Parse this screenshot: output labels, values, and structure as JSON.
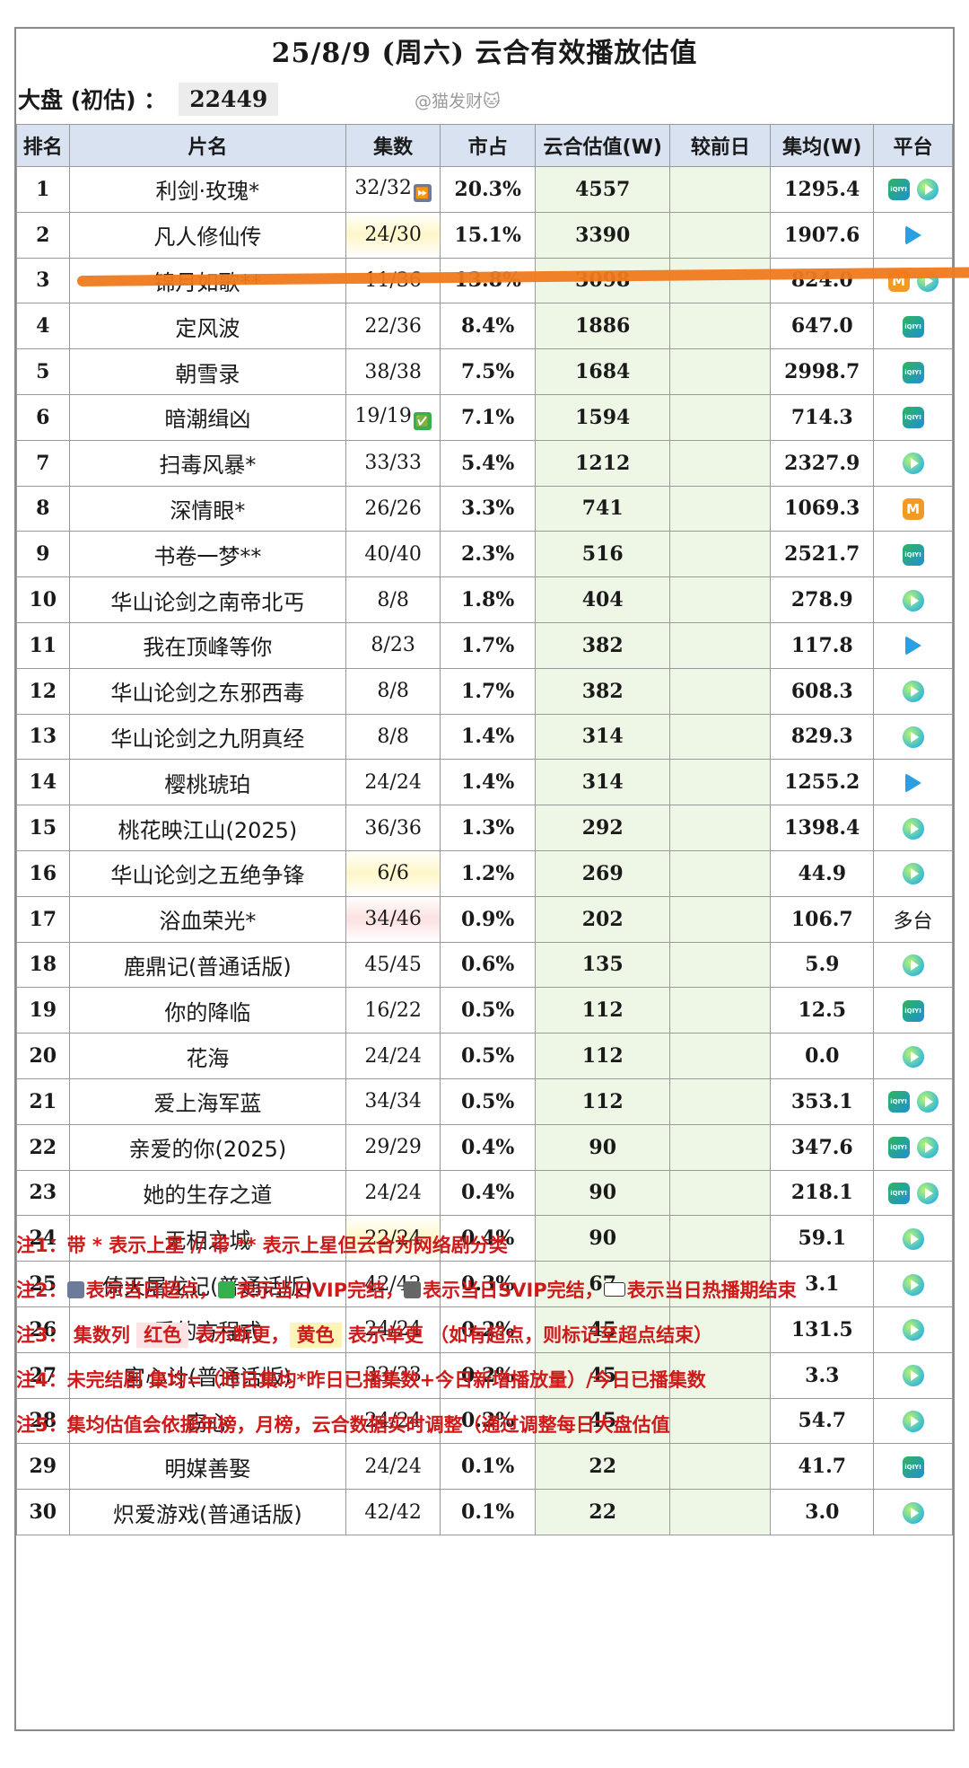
{
  "title": "25/8/9 (周六) 云合有效播放估值",
  "summary": {
    "label": "大盘 (初估) ：",
    "value": "22449"
  },
  "watermark": "@猫发财🐱",
  "columns": [
    "排名",
    "片名",
    "集数",
    "市占",
    "云合估值(W)",
    "较前日",
    "集均(W)",
    "平台"
  ],
  "rows": [
    {
      "rank": "1",
      "name": "利剑·玫瑰*",
      "ep": "32/32",
      "badge": "⏩",
      "share": "20.3%",
      "val": "4557",
      "prev": "",
      "avg": "1295.4",
      "plat": [
        "iqiyi",
        "youku"
      ]
    },
    {
      "rank": "2",
      "name": "凡人修仙传",
      "ep": "24/30",
      "hl": "yellow",
      "share": "15.1%",
      "val": "3390",
      "prev": "",
      "avg": "1907.6",
      "plat": [
        "tencent"
      ]
    },
    {
      "rank": "3",
      "name": "锦月如歌**",
      "ep": "11/36",
      "share": "13.8%",
      "val": "3098",
      "prev": "",
      "avg": "824.0",
      "plat": [
        "mango",
        "youku"
      ]
    },
    {
      "rank": "4",
      "name": "定风波",
      "ep": "22/36",
      "share": "8.4%",
      "val": "1886",
      "prev": "",
      "avg": "647.0",
      "plat": [
        "iqiyi"
      ]
    },
    {
      "rank": "5",
      "name": "朝雪录",
      "ep": "38/38",
      "share": "7.5%",
      "val": "1684",
      "prev": "",
      "avg": "2998.7",
      "plat": [
        "iqiyi"
      ]
    },
    {
      "rank": "6",
      "name": "暗潮缉凶",
      "ep": "19/19",
      "badge": "✅",
      "share": "7.1%",
      "val": "1594",
      "prev": "",
      "avg": "714.3",
      "plat": [
        "iqiyi"
      ]
    },
    {
      "rank": "7",
      "name": "扫毒风暴*",
      "ep": "33/33",
      "share": "5.4%",
      "val": "1212",
      "prev": "",
      "avg": "2327.9",
      "plat": [
        "youku"
      ]
    },
    {
      "rank": "8",
      "name": "深情眼*",
      "ep": "26/26",
      "share": "3.3%",
      "val": "741",
      "prev": "",
      "avg": "1069.3",
      "plat": [
        "mango"
      ]
    },
    {
      "rank": "9",
      "name": "书卷一梦**",
      "ep": "40/40",
      "share": "2.3%",
      "val": "516",
      "prev": "",
      "avg": "2521.7",
      "plat": [
        "iqiyi"
      ]
    },
    {
      "rank": "10",
      "name": "华山论剑之南帝北丐",
      "ep": "8/8",
      "share": "1.8%",
      "val": "404",
      "prev": "",
      "avg": "278.9",
      "plat": [
        "youku"
      ]
    },
    {
      "rank": "11",
      "name": "我在顶峰等你",
      "ep": "8/23",
      "share": "1.7%",
      "val": "382",
      "prev": "",
      "avg": "117.8",
      "plat": [
        "tencent"
      ]
    },
    {
      "rank": "12",
      "name": "华山论剑之东邪西毒",
      "ep": "8/8",
      "share": "1.7%",
      "val": "382",
      "prev": "",
      "avg": "608.3",
      "plat": [
        "youku"
      ]
    },
    {
      "rank": "13",
      "name": "华山论剑之九阴真经",
      "ep": "8/8",
      "share": "1.4%",
      "val": "314",
      "prev": "",
      "avg": "829.3",
      "plat": [
        "youku"
      ]
    },
    {
      "rank": "14",
      "name": "樱桃琥珀",
      "ep": "24/24",
      "share": "1.4%",
      "val": "314",
      "prev": "",
      "avg": "1255.2",
      "plat": [
        "tencent"
      ]
    },
    {
      "rank": "15",
      "name": "桃花映江山(2025)",
      "ep": "36/36",
      "share": "1.3%",
      "val": "292",
      "prev": "",
      "avg": "1398.4",
      "plat": [
        "youku"
      ]
    },
    {
      "rank": "16",
      "name": "华山论剑之五绝争锋",
      "ep": "6/6",
      "hl": "yellow",
      "share": "1.2%",
      "val": "269",
      "prev": "",
      "avg": "44.9",
      "plat": [
        "youku"
      ]
    },
    {
      "rank": "17",
      "name": "浴血荣光*",
      "ep": "34/46",
      "hl": "red",
      "share": "0.9%",
      "val": "202",
      "prev": "",
      "avg": "106.7",
      "plat_text": "多台"
    },
    {
      "rank": "18",
      "name": "鹿鼎记(普通话版)",
      "ep": "45/45",
      "share": "0.6%",
      "val": "135",
      "prev": "",
      "avg": "5.9",
      "plat": [
        "youku"
      ]
    },
    {
      "rank": "19",
      "name": "你的降临",
      "ep": "16/22",
      "share": "0.5%",
      "val": "112",
      "prev": "",
      "avg": "12.5",
      "plat": [
        "iqiyi"
      ]
    },
    {
      "rank": "20",
      "name": "花海",
      "ep": "24/24",
      "share": "0.5%",
      "val": "112",
      "prev": "",
      "avg": "0.0",
      "plat": [
        "youku"
      ]
    },
    {
      "rank": "21",
      "name": "爱上海军蓝",
      "ep": "34/34",
      "share": "0.5%",
      "val": "112",
      "prev": "",
      "avg": "353.1",
      "plat": [
        "iqiyi",
        "youku"
      ]
    },
    {
      "rank": "22",
      "name": "亲爱的你(2025)",
      "ep": "29/29",
      "share": "0.4%",
      "val": "90",
      "prev": "",
      "avg": "347.6",
      "plat": [
        "iqiyi",
        "youku"
      ]
    },
    {
      "rank": "23",
      "name": "她的生存之道",
      "ep": "24/24",
      "share": "0.4%",
      "val": "90",
      "prev": "",
      "avg": "218.1",
      "plat": [
        "iqiyi",
        "youku"
      ]
    },
    {
      "rank": "24",
      "name": "无相之城",
      "ep": "22/24",
      "hl": "yellow",
      "share": "0.4%",
      "val": "90",
      "prev": "",
      "avg": "59.1",
      "plat": [
        "youku"
      ]
    },
    {
      "rank": "25",
      "name": "倚天屠龙记(普通话版)",
      "ep": "42/42",
      "share": "0.3%",
      "val": "67",
      "prev": "",
      "avg": "3.1",
      "plat": [
        "youku"
      ]
    },
    {
      "rank": "26",
      "name": "爱的方程式",
      "ep": "24/24",
      "share": "0.2%",
      "val": "45",
      "prev": "",
      "avg": "131.5",
      "plat": [
        "youku"
      ]
    },
    {
      "rank": "27",
      "name": "宫心计(普通话版)",
      "ep": "33/33",
      "share": "0.2%",
      "val": "45",
      "prev": "",
      "avg": "3.3",
      "plat": [
        "youku"
      ]
    },
    {
      "rank": "28",
      "name": "窃心",
      "ep": "24/24",
      "share": "0.2%",
      "val": "45",
      "prev": "",
      "avg": "54.7",
      "plat": [
        "youku"
      ]
    },
    {
      "rank": "29",
      "name": "明媒善娶",
      "ep": "24/24",
      "share": "0.1%",
      "val": "22",
      "prev": "",
      "avg": "41.7",
      "plat": [
        "iqiyi"
      ]
    },
    {
      "rank": "30",
      "name": "炽爱游戏(普通话版)",
      "ep": "42/42",
      "share": "0.1%",
      "val": "22",
      "prev": "",
      "avg": "3.0",
      "plat": [
        "youku"
      ]
    }
  ],
  "platform_icons": {
    "iqiyi": "iQIYI",
    "tencent": "tencent-video-icon",
    "youku": "youku-icon",
    "mango": "M"
  },
  "notes": {
    "n1": "注1：带 * 表示上星 // 带 ** 表示上星但云合为网络剧分类",
    "n2_a": "注2：",
    "n2_b": "表示当日超点，",
    "n2_c": "表示当日VIP完结，",
    "n2_d": "表示当日SVIP完结，",
    "n2_e": "表示当日热播期结束",
    "n3_a": "注3：  集数列 ",
    "n3_red": "红色",
    "n3_b": " 表示断更，",
    "n3_yel": "黄色",
    "n3_c": " 表示单更 （如有超点，则标记至超点结束）",
    "n4": "注4：未完结剧 集均=（昨日集均*昨日已播集数+今日新增播放量）/今日已播集数",
    "n5": "注5：集均估值会依据年榜，月榜，云合数据实时调整（通过调整每日大盘估值"
  },
  "colors": {
    "header_bg": "#d9e2f0",
    "value_bg": "#eef6e6",
    "note_red": "#d01a1a",
    "stripe": "#f07a1e"
  }
}
